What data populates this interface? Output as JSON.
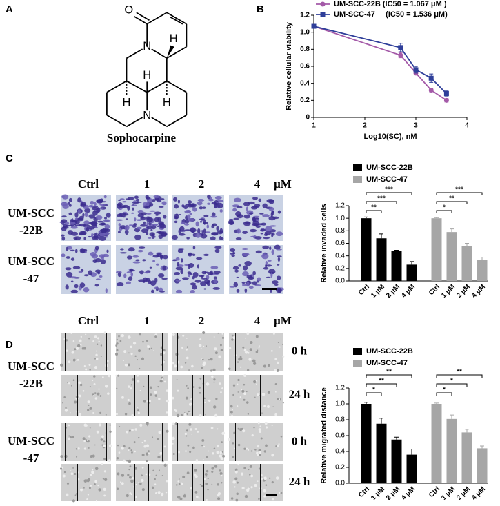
{
  "panels": {
    "labels": [
      "A",
      "B",
      "C",
      "D"
    ]
  },
  "molecule": {
    "atoms": [
      "O",
      "N",
      "H",
      "H",
      "N",
      "H",
      "H"
    ],
    "name": "Sophocarpine"
  },
  "invasion": {
    "columns": [
      "Ctrl",
      "1",
      "2",
      "4",
      "μM"
    ],
    "rows": [
      [
        "UM-SCC",
        "-22B"
      ],
      [
        "UM-SCC",
        "-47"
      ]
    ]
  },
  "migration": {
    "columns": [
      "Ctrl",
      "1",
      "2",
      "4",
      "μM"
    ],
    "rows": [
      [
        "UM-SCC",
        "-22B"
      ],
      [
        "UM-SCC",
        "-47"
      ]
    ],
    "times": [
      "0 h",
      "24 h",
      "0 h",
      "24 h"
    ]
  },
  "chart_data": [
    {
      "type": "line",
      "x_label": "Log10(SC), nM",
      "y_label": "Relative cellular viability",
      "x": [
        1,
        2.7,
        3,
        3.3,
        3.6
      ],
      "xlim": [
        1,
        4
      ],
      "xticks": [
        1,
        2,
        3,
        4
      ],
      "ylim": [
        0,
        1.2
      ],
      "yticks": [
        0,
        0.2,
        0.4,
        0.6,
        0.8,
        {
          "value": 1,
          "label": "1.0"
        },
        1.2
      ],
      "series": [
        {
          "name": "UM-SCC-22B (IC50 = 1.067 μM )",
          "color": "#a45aa8",
          "marker": "circle",
          "values": [
            1.07,
            0.73,
            0.52,
            0.32,
            0.2
          ],
          "errors": [
            0.01,
            0.03,
            0.02,
            0.02,
            0.02
          ]
        },
        {
          "name": "UM-SCC-47     (IC50 = 1.536 μM)",
          "color": "#2f3f9a",
          "marker": "square",
          "values": [
            1.07,
            0.82,
            0.56,
            0.46,
            0.28
          ],
          "errors": [
            0.01,
            0.05,
            0.04,
            0.05,
            0.03
          ]
        }
      ]
    },
    {
      "type": "bar",
      "y_label": "Relative invaded cells",
      "categories": [
        "Ctrl",
        "1 μM",
        "2 μM",
        "4 μM"
      ],
      "ylim": [
        0,
        1.2
      ],
      "yticks": [
        {
          "value": 0,
          "label": "0.0"
        },
        0.2,
        0.4,
        0.6,
        0.8,
        {
          "value": 1,
          "label": "1.0"
        },
        1.2
      ],
      "series": [
        {
          "name": "UM-SCC-22B",
          "color": "#000000",
          "values": [
            1.0,
            0.68,
            0.48,
            0.26
          ],
          "errors": [
            0.02,
            0.07,
            0.01,
            0.05
          ],
          "significance": [
            "**",
            "***",
            "***"
          ]
        },
        {
          "name": "UM-SCC-47",
          "color": "#a6a6a6",
          "values": [
            1.0,
            0.78,
            0.56,
            0.34
          ],
          "errors": [
            0.01,
            0.05,
            0.04,
            0.04
          ],
          "significance": [
            "*",
            "**",
            "***"
          ]
        }
      ]
    },
    {
      "type": "bar",
      "y_label": "Relative migrated distance",
      "categories": [
        "Ctrl",
        "1 μM",
        "2 μM",
        "4 μM"
      ],
      "ylim": [
        0,
        1.2
      ],
      "yticks": [
        {
          "value": 0,
          "label": "0.0"
        },
        0.2,
        0.4,
        0.6,
        0.8,
        {
          "value": 1,
          "label": "1.0"
        },
        1.2
      ],
      "series": [
        {
          "name": "UM-SCC-22B",
          "color": "#000000",
          "values": [
            1.0,
            0.75,
            0.55,
            0.36
          ],
          "errors": [
            0.02,
            0.07,
            0.03,
            0.07
          ],
          "significance": [
            "*",
            "**",
            "**"
          ]
        },
        {
          "name": "UM-SCC-47",
          "color": "#a6a6a6",
          "values": [
            1.0,
            0.81,
            0.64,
            0.44
          ],
          "errors": [
            0.01,
            0.05,
            0.04,
            0.03
          ],
          "significance": [
            "*",
            "*",
            "**"
          ]
        }
      ]
    }
  ]
}
